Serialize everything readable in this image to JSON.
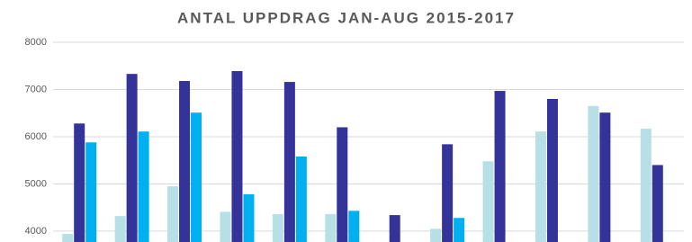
{
  "chart_data": {
    "type": "bar",
    "title": "ANTAL UPPDRAG JAN-AUG 2015-2017",
    "categories": [
      null,
      null,
      null,
      null,
      null,
      null,
      null,
      null,
      null,
      null,
      null,
      null
    ],
    "series": [
      {
        "color": "#b7e0e6",
        "values": [
          3940,
          4320,
          4950,
          4410,
          4360,
          4360,
          null,
          4050,
          5480,
          6110,
          6650,
          6170
        ]
      },
      {
        "color": "#333399",
        "values": [
          6280,
          7330,
          7180,
          7390,
          7160,
          6200,
          4340,
          5840,
          6970,
          6800,
          6510,
          5400
        ]
      },
      {
        "color": "#00b0f0",
        "values": [
          5880,
          6110,
          6510,
          4780,
          5580,
          4430,
          null,
          4280,
          null,
          null,
          null,
          null
        ]
      }
    ],
    "ylim": [
      3770,
      8000
    ],
    "yticks": [
      4000,
      5000,
      6000,
      7000,
      8000
    ],
    "grid": true
  }
}
